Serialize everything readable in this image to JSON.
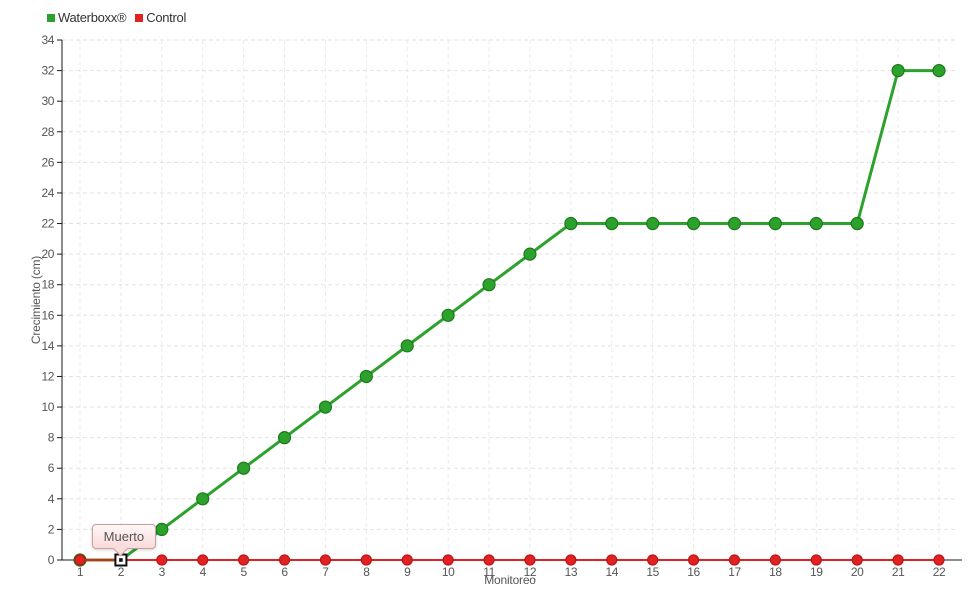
{
  "chart_data": {
    "type": "line",
    "title": "",
    "xlabel": "Monitoreo",
    "ylabel": "Crecimiento (cm)",
    "x": [
      1,
      2,
      3,
      4,
      5,
      6,
      7,
      8,
      9,
      10,
      11,
      12,
      13,
      14,
      15,
      16,
      17,
      18,
      19,
      20,
      21,
      22
    ],
    "ylim": [
      0,
      34
    ],
    "ytick_step": 2,
    "grid": true,
    "legend_position": "top-left",
    "series": [
      {
        "name": "Waterboxx®",
        "color": "#2ca22c",
        "marker_stroke": "#1b7a1b",
        "line_width": 3,
        "marker_radius": 6,
        "values": [
          0,
          0,
          2,
          4,
          6,
          8,
          10,
          12,
          14,
          16,
          18,
          20,
          22,
          22,
          22,
          22,
          22,
          22,
          22,
          22,
          32,
          32
        ]
      },
      {
        "name": "Control",
        "color": "#e12222",
        "marker_stroke": "#bc1515",
        "line_width": 2,
        "marker_radius": 5,
        "values": [
          0,
          0,
          0,
          0,
          0,
          0,
          0,
          0,
          0,
          0,
          0,
          0,
          0,
          0,
          0,
          0,
          0,
          0,
          0,
          0,
          0,
          0
        ]
      }
    ],
    "annotation": {
      "label": "Muerto",
      "series": "Waterboxx®",
      "x": 2,
      "y": 0
    }
  },
  "colors": {
    "grid_horizontal": "#e2e2e2",
    "grid_vertical": "#ebebeb",
    "axis": "#1a1a1a",
    "tick_text": "#555555",
    "tooltip_border": "#c9a0a0",
    "annotation_marker": "#111111"
  }
}
